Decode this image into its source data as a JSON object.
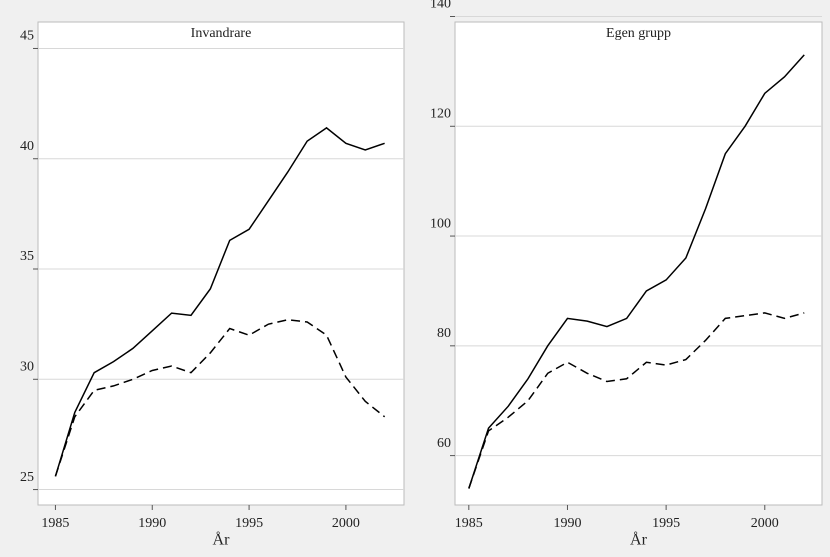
{
  "chart_data": [
    {
      "type": "line",
      "title": "Invandrare",
      "x_label": "År",
      "x": [
        1985,
        1986,
        1987,
        1988,
        1989,
        1990,
        1991,
        1992,
        1993,
        1994,
        1995,
        1996,
        1997,
        1998,
        1999,
        2000,
        2001,
        2002
      ],
      "series": [
        {
          "color": "#000000",
          "dash": "solid",
          "values": [
            25.6,
            28.5,
            30.3,
            30.8,
            31.4,
            32.2,
            33.0,
            32.9,
            34.1,
            36.3,
            36.8,
            38.1,
            39.4,
            40.8,
            41.4,
            40.7,
            40.4,
            40.7
          ]
        },
        {
          "color": "#000000",
          "dash": "dashed",
          "values": [
            25.6,
            28.3,
            29.5,
            29.7,
            30.0,
            30.4,
            30.6,
            30.3,
            31.2,
            32.3,
            32.0,
            32.5,
            32.7,
            32.6,
            32.0,
            30.1,
            29.0,
            28.3
          ]
        }
      ],
      "xlim": [
        1984.1,
        2003.0
      ],
      "xticks": [
        1985,
        1990,
        1995,
        2000
      ],
      "ylim": [
        24.3,
        46.2
      ],
      "yticks": [
        25,
        30,
        35,
        40,
        45
      ],
      "grid": true
    },
    {
      "type": "line",
      "title": "Egen grupp",
      "x_label": "År",
      "x": [
        1985,
        1986,
        1987,
        1988,
        1989,
        1990,
        1991,
        1992,
        1993,
        1994,
        1995,
        1996,
        1997,
        1998,
        1999,
        2000,
        2001,
        2002
      ],
      "series": [
        {
          "color": "#000000",
          "dash": "solid",
          "values": [
            54,
            65,
            69,
            74,
            80,
            85,
            84.5,
            83.5,
            85,
            90,
            92,
            96,
            105,
            115,
            120,
            126,
            129,
            133
          ]
        },
        {
          "color": "#000000",
          "dash": "dashed",
          "values": [
            54,
            64.5,
            67,
            70,
            75,
            77,
            75,
            73.5,
            74,
            77,
            76.5,
            77.5,
            81,
            85,
            85.5,
            86,
            85,
            86
          ]
        }
      ],
      "xlim": [
        1984.3,
        2002.9
      ],
      "xticks": [
        1985,
        1990,
        1995,
        2000
      ],
      "ylim": [
        51,
        139
      ],
      "yticks": [
        60,
        80,
        100,
        120,
        140
      ],
      "grid": true
    }
  ]
}
